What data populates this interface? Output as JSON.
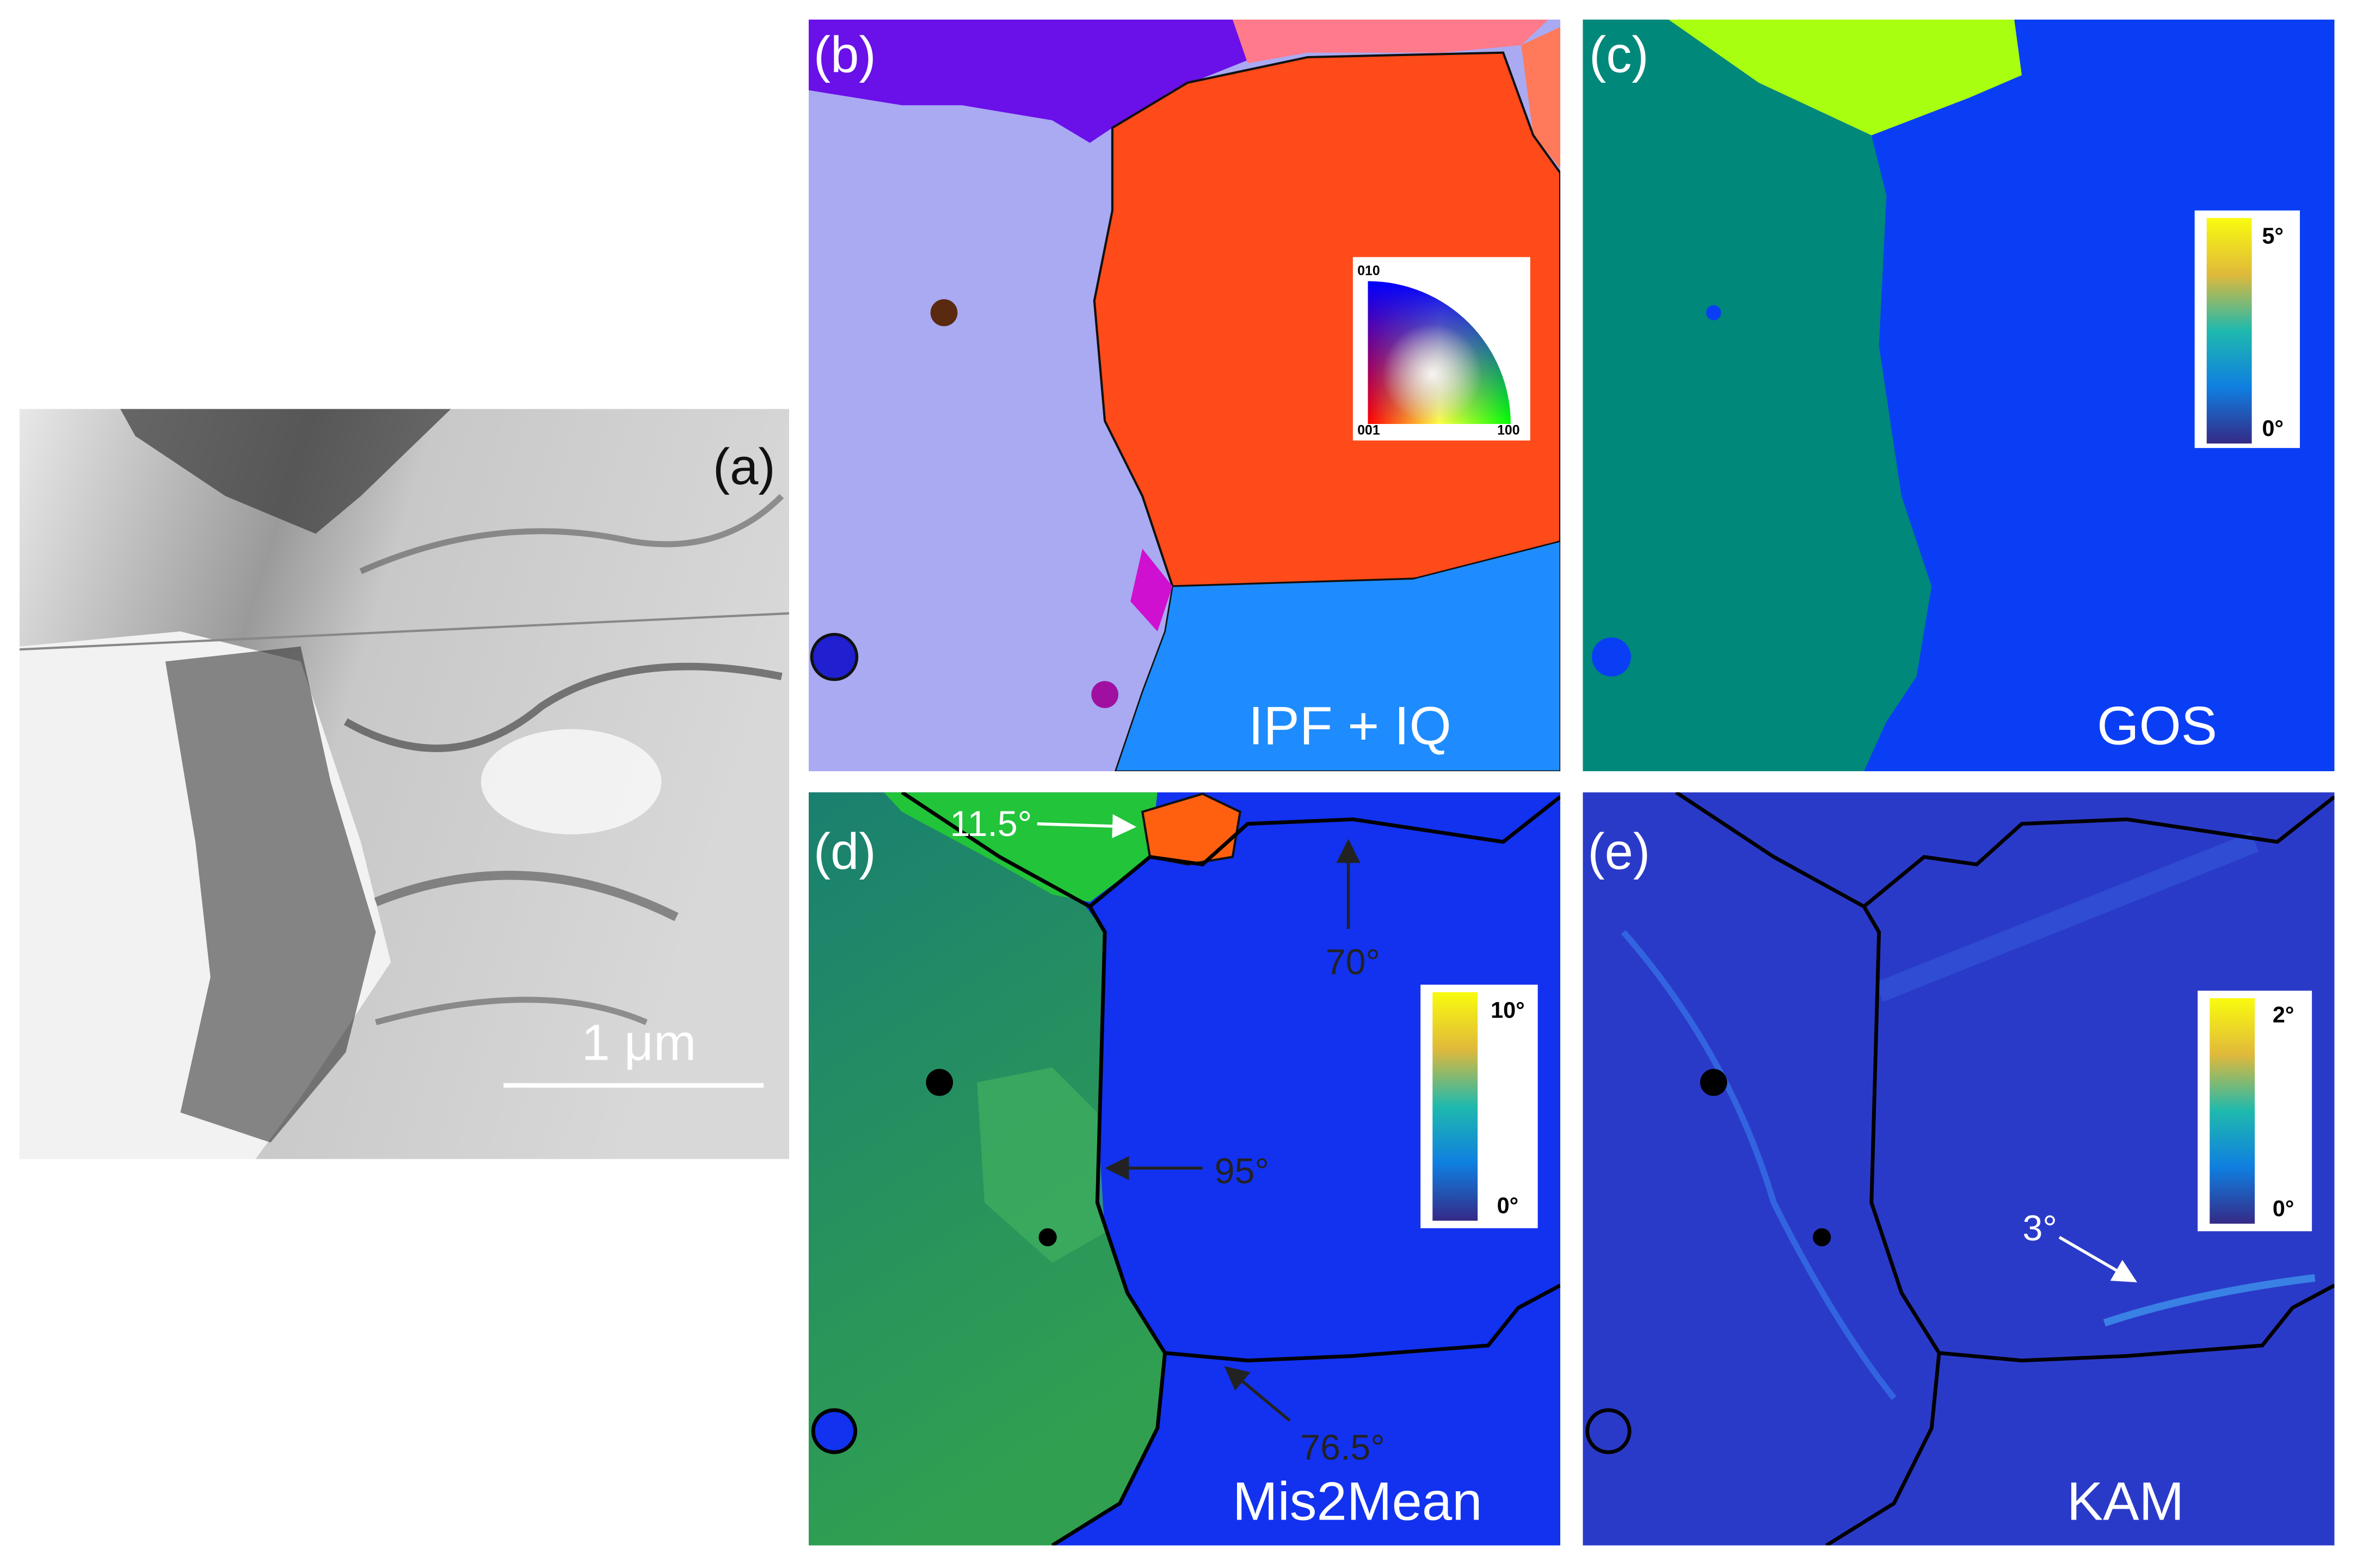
{
  "panel_a": {
    "label": "(a)",
    "scale_bar": "1 μm"
  },
  "panel_b": {
    "label": "(b)",
    "caption": "IPF + IQ",
    "legend": {
      "top": "010",
      "bottom_left": "001",
      "bottom_right": "100"
    }
  },
  "panel_c": {
    "label": "(c)",
    "caption": "GOS",
    "colorbar": {
      "max": "5°",
      "min": "0°"
    }
  },
  "panel_d": {
    "label": "(d)",
    "caption": "Mis2Mean",
    "colorbar": {
      "max": "10°",
      "min": "0°"
    },
    "annotations": [
      "11.5°",
      "70°",
      "95°",
      "76.5°"
    ]
  },
  "panel_e": {
    "label": "(e)",
    "caption": "KAM",
    "colorbar": {
      "max": "2°",
      "min": "0°"
    },
    "annotations": [
      "3°"
    ]
  }
}
